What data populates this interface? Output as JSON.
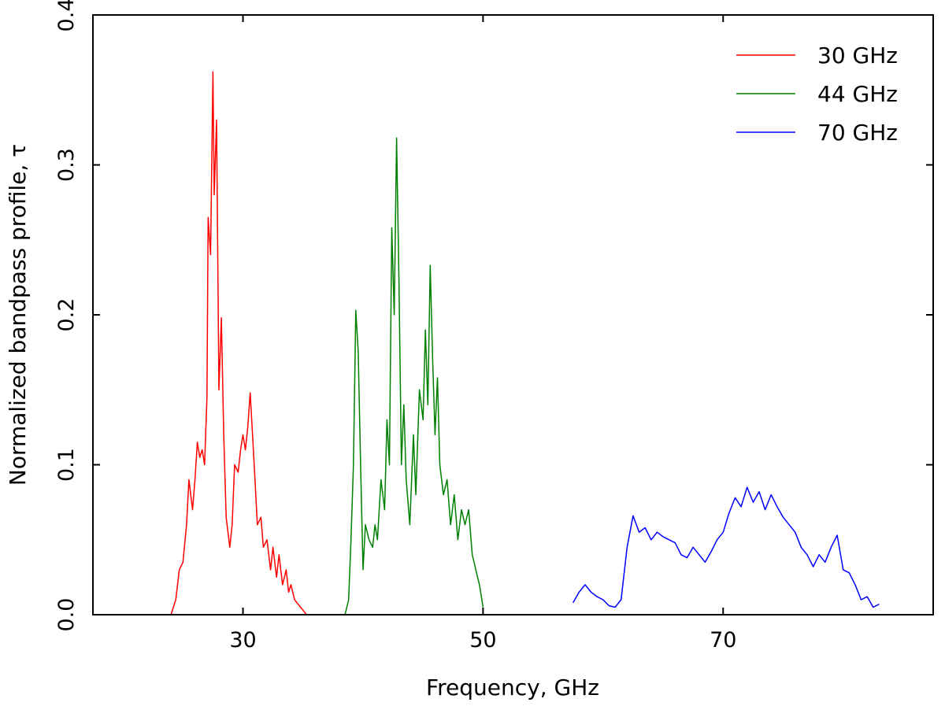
{
  "chart_data": {
    "type": "line",
    "xlabel": "Frequency, GHz",
    "ylabel": "Normalized bandpass profile, τ",
    "xlim": [
      17.5,
      87.5
    ],
    "ylim": [
      0,
      0.4
    ],
    "xticks": [
      30,
      50,
      70
    ],
    "yticks": [
      0.0,
      0.1,
      0.2,
      0.3,
      0.4
    ],
    "grid": false,
    "legend": "top-right",
    "series": [
      {
        "name": "30 GHz",
        "color": "#ff0000",
        "x": [
          24.0,
          24.4,
          24.7,
          25.0,
          25.3,
          25.5,
          25.8,
          26.0,
          26.2,
          26.4,
          26.6,
          26.8,
          27.0,
          27.1,
          27.3,
          27.5,
          27.6,
          27.8,
          28.0,
          28.2,
          28.4,
          28.6,
          28.9,
          29.1,
          29.3,
          29.6,
          29.8,
          30.0,
          30.2,
          30.4,
          30.6,
          30.8,
          31.0,
          31.2,
          31.5,
          31.7,
          32.0,
          32.3,
          32.5,
          32.8,
          33.0,
          33.3,
          33.6,
          33.8,
          34.0,
          34.3,
          34.5,
          34.8,
          35.1,
          35.3
        ],
        "values": [
          0.0,
          0.01,
          0.03,
          0.035,
          0.06,
          0.09,
          0.07,
          0.09,
          0.115,
          0.105,
          0.11,
          0.1,
          0.145,
          0.265,
          0.24,
          0.362,
          0.28,
          0.33,
          0.15,
          0.198,
          0.12,
          0.065,
          0.045,
          0.06,
          0.1,
          0.095,
          0.11,
          0.12,
          0.11,
          0.125,
          0.148,
          0.12,
          0.09,
          0.06,
          0.065,
          0.045,
          0.05,
          0.03,
          0.045,
          0.025,
          0.04,
          0.02,
          0.03,
          0.015,
          0.02,
          0.01,
          0.008,
          0.005,
          0.002,
          0.0
        ]
      },
      {
        "name": "44 GHz",
        "color": "#008000",
        "x": [
          38.5,
          38.8,
          39.0,
          39.2,
          39.4,
          39.6,
          39.8,
          40.0,
          40.2,
          40.5,
          40.8,
          41.0,
          41.2,
          41.5,
          41.8,
          42.0,
          42.2,
          42.4,
          42.6,
          42.8,
          43.0,
          43.2,
          43.4,
          43.6,
          43.9,
          44.2,
          44.4,
          44.7,
          45.0,
          45.2,
          45.4,
          45.6,
          45.8,
          46.0,
          46.2,
          46.4,
          46.7,
          47.0,
          47.3,
          47.6,
          47.9,
          48.2,
          48.5,
          48.8,
          49.1,
          49.4,
          49.7,
          50.0
        ],
        "values": [
          0.0,
          0.01,
          0.05,
          0.1,
          0.203,
          0.175,
          0.1,
          0.03,
          0.06,
          0.05,
          0.045,
          0.06,
          0.05,
          0.09,
          0.07,
          0.13,
          0.1,
          0.258,
          0.2,
          0.318,
          0.22,
          0.1,
          0.14,
          0.09,
          0.06,
          0.12,
          0.08,
          0.15,
          0.13,
          0.19,
          0.14,
          0.233,
          0.17,
          0.12,
          0.158,
          0.1,
          0.08,
          0.09,
          0.06,
          0.08,
          0.05,
          0.07,
          0.06,
          0.07,
          0.04,
          0.03,
          0.02,
          0.005
        ]
      },
      {
        "name": "70 GHz",
        "color": "#0000ff",
        "x": [
          57.5,
          58.0,
          58.5,
          59.0,
          59.5,
          60.0,
          60.5,
          61.0,
          61.5,
          62.0,
          62.5,
          63.0,
          63.5,
          64.0,
          64.5,
          65.0,
          65.5,
          66.0,
          66.5,
          67.0,
          67.5,
          68.0,
          68.5,
          69.0,
          69.5,
          70.0,
          70.5,
          71.0,
          71.5,
          72.0,
          72.5,
          73.0,
          73.5,
          74.0,
          74.5,
          75.0,
          75.5,
          76.0,
          76.5,
          77.0,
          77.5,
          78.0,
          78.5,
          79.0,
          79.5,
          80.0,
          80.5,
          81.0,
          81.5,
          82.0,
          82.5,
          83.0
        ],
        "values": [
          0.008,
          0.015,
          0.02,
          0.015,
          0.012,
          0.01,
          0.006,
          0.005,
          0.01,
          0.045,
          0.066,
          0.055,
          0.058,
          0.05,
          0.055,
          0.052,
          0.05,
          0.048,
          0.04,
          0.038,
          0.045,
          0.04,
          0.035,
          0.042,
          0.05,
          0.055,
          0.068,
          0.078,
          0.072,
          0.085,
          0.075,
          0.082,
          0.07,
          0.08,
          0.072,
          0.065,
          0.06,
          0.055,
          0.045,
          0.04,
          0.032,
          0.04,
          0.035,
          0.045,
          0.053,
          0.03,
          0.028,
          0.02,
          0.01,
          0.012,
          0.005,
          0.007
        ]
      }
    ]
  }
}
